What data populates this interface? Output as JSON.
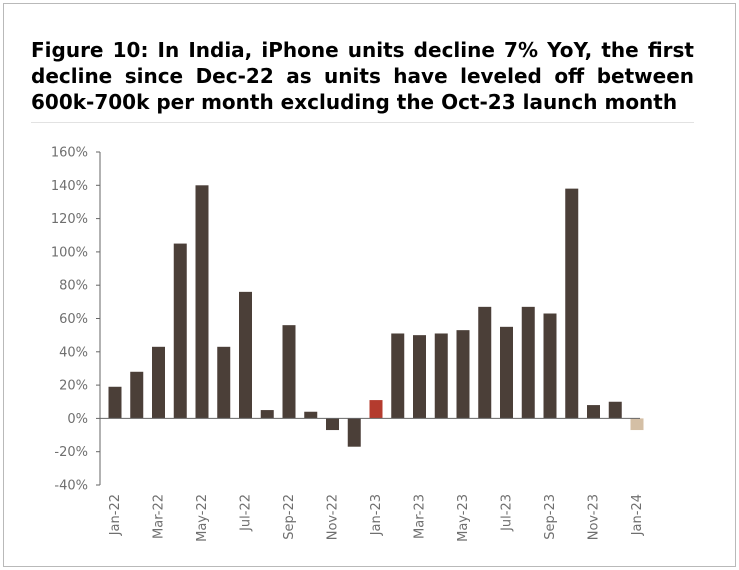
{
  "title": "Figure 10: In India, iPhone units decline 7% YoY, the first decline since Dec-22 as units have leveled off between 600k-700k per month excluding the Oct-23 launch month",
  "colors": {
    "bar": "#4b3f38",
    "highlight": "#b43b2e",
    "forecast": "#d4bfa5",
    "axis": "#666666",
    "text": "#6f6f6f"
  },
  "chart_data": {
    "type": "bar",
    "title": "Figure 10: In India, iPhone units decline 7% YoY, the first decline since Dec-22 as units have leveled off between 600k-700k per month excluding the Oct-23 launch month",
    "xlabel": "",
    "ylabel": "",
    "ylim": [
      -40,
      160
    ],
    "yticks": [
      -40,
      -20,
      0,
      20,
      40,
      60,
      80,
      100,
      120,
      140,
      160
    ],
    "ytick_labels": [
      "-40%",
      "-20%",
      "0%",
      "20%",
      "40%",
      "60%",
      "80%",
      "100%",
      "120%",
      "140%",
      "160%"
    ],
    "grid": false,
    "categories": [
      "Jan-22",
      "Feb-22",
      "Mar-22",
      "Apr-22",
      "May-22",
      "Jun-22",
      "Jul-22",
      "Aug-22",
      "Sep-22",
      "Oct-22",
      "Nov-22",
      "Dec-22",
      "Jan-23",
      "Feb-23",
      "Mar-23",
      "Apr-23",
      "May-23",
      "Jun-23",
      "Jul-23",
      "Aug-23",
      "Sep-23",
      "Oct-23",
      "Nov-23",
      "Dec-23",
      "Jan-24"
    ],
    "x_tick_labels": [
      "Jan-22",
      "Mar-22",
      "May-22",
      "Jul-22",
      "Sep-22",
      "Nov-22",
      "Jan-23",
      "Mar-23",
      "May-23",
      "Jul-23",
      "Sep-23",
      "Nov-23",
      "Jan-24"
    ],
    "values": [
      19,
      28,
      43,
      105,
      140,
      43,
      76,
      5,
      56,
      4,
      -7,
      -17,
      11,
      51,
      50,
      51,
      53,
      67,
      55,
      67,
      63,
      138,
      8,
      10,
      -7
    ],
    "highlight_index": 12,
    "forecast_index": 24
  }
}
